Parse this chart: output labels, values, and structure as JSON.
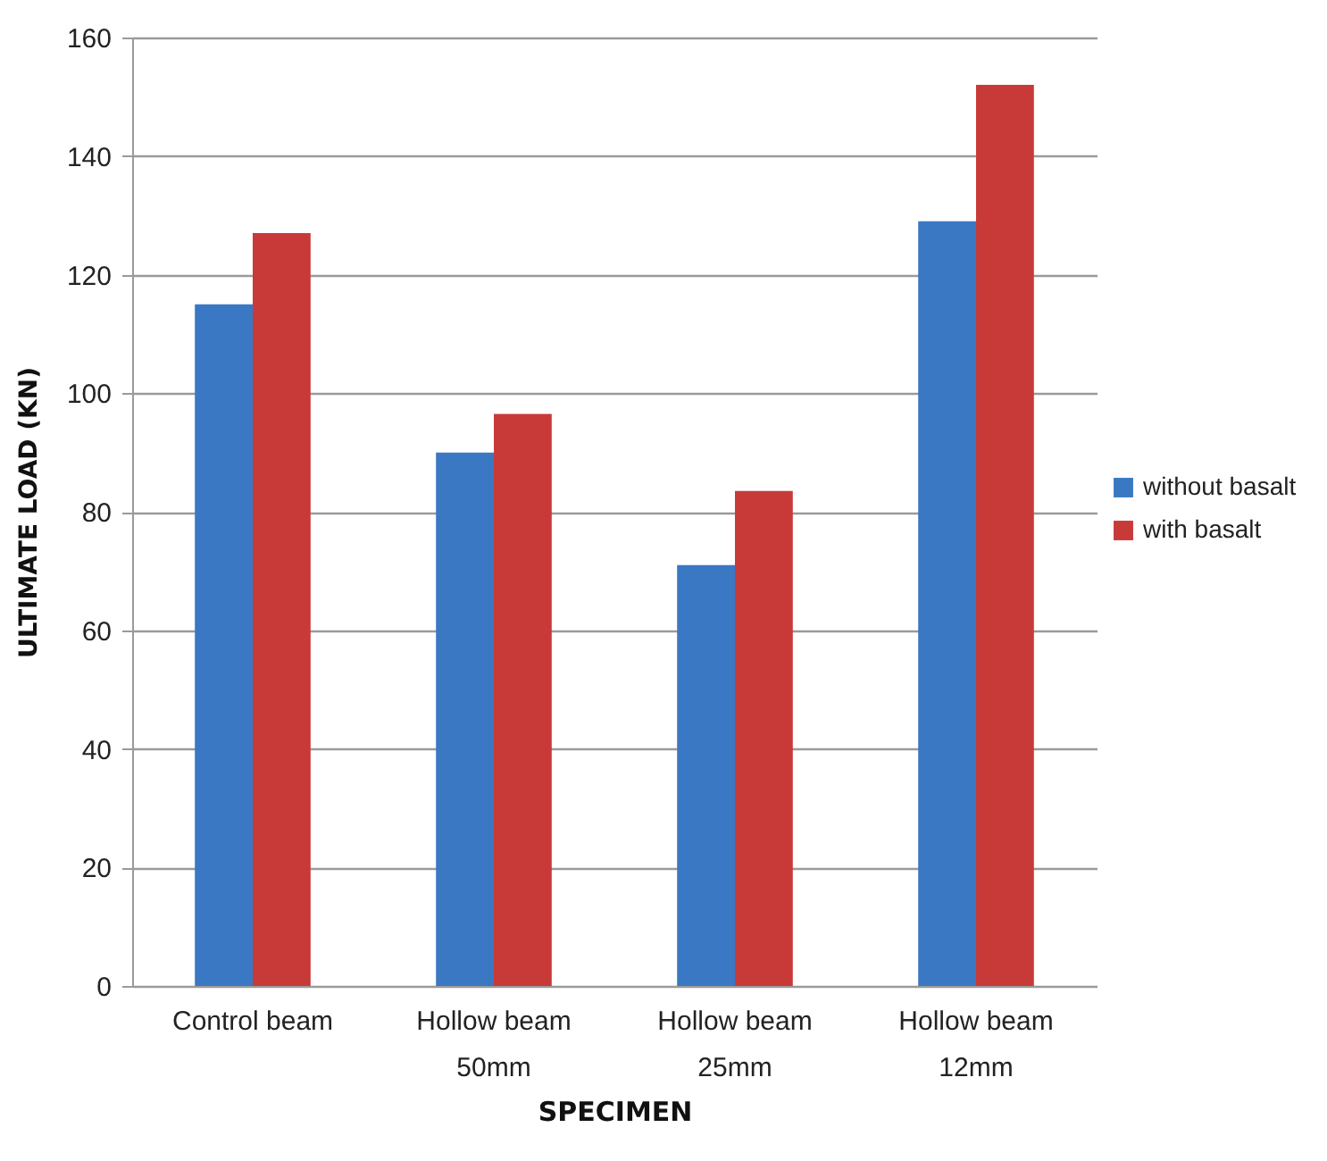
{
  "chart_data": {
    "type": "bar",
    "xlabel": "SPECIMEN",
    "ylabel": "ULTIMATE LOAD (KN)",
    "categories": [
      "Control beam",
      "Hollow beam\n50mm",
      "Hollow beam\n25mm",
      "Hollow beam\n12mm"
    ],
    "series": [
      {
        "name": "without basalt",
        "color": "#3a78c4",
        "values": [
          115,
          90,
          71,
          129
        ]
      },
      {
        "name": "with basalt",
        "color": "#c83a38",
        "values": [
          127,
          96.5,
          83.5,
          152
        ]
      }
    ],
    "ylim": [
      0,
      160
    ],
    "yticks": [
      0,
      20,
      40,
      60,
      80,
      100,
      120,
      140,
      160
    ],
    "grid": "y",
    "legend": "right"
  }
}
